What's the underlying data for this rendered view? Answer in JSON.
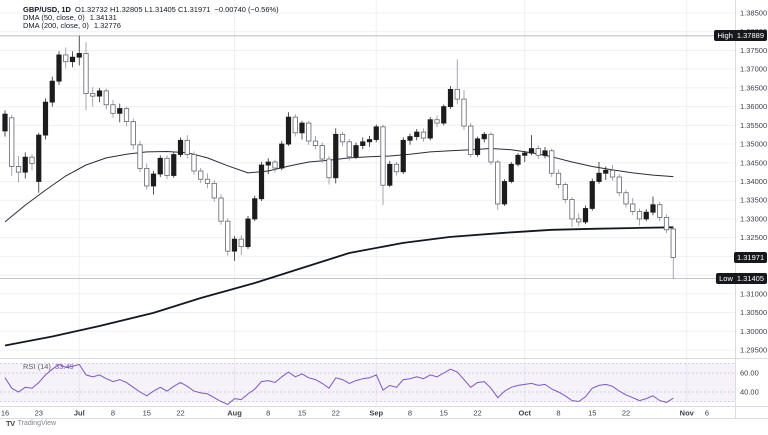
{
  "legend": {
    "symbol": "GBP/USD, 1D",
    "ohlc": "O1.32732  H1.32805  L1.31405  C1.31971",
    "change": "−0.00740 (−0.56%)",
    "ma50_label": "DMA (50, close, 0)",
    "ma50_value": "1.34131",
    "ma200_label": "DMA (200, close, 0)",
    "ma200_value": "1.32776"
  },
  "badges": {
    "high": {
      "label": "High",
      "value": "1.37889",
      "price": 1.37889
    },
    "low": {
      "label": "Low",
      "value": "1.31405",
      "price": 1.31405
    },
    "last": {
      "value": "1.31971",
      "price": 1.31971
    }
  },
  "price_axis": {
    "ticks": [
      {
        "price": 1.385,
        "label": "1.38500"
      },
      {
        "price": 1.38,
        "label": "1.38000"
      },
      {
        "price": 1.375,
        "label": "1.37500"
      },
      {
        "price": 1.37,
        "label": "1.37000"
      },
      {
        "price": 1.365,
        "label": "1.36500"
      },
      {
        "price": 1.36,
        "label": "1.36000"
      },
      {
        "price": 1.355,
        "label": "1.35500"
      },
      {
        "price": 1.35,
        "label": "1.35000"
      },
      {
        "price": 1.345,
        "label": "1.34500"
      },
      {
        "price": 1.34,
        "label": "1.34000"
      },
      {
        "price": 1.335,
        "label": "1.33500"
      },
      {
        "price": 1.33,
        "label": "1.33000"
      },
      {
        "price": 1.325,
        "label": "1.32500"
      },
      {
        "price": 1.32,
        "label": ""
      },
      {
        "price": 1.315,
        "label": ""
      },
      {
        "price": 1.31,
        "label": "1.31000"
      },
      {
        "price": 1.305,
        "label": "1.30500"
      },
      {
        "price": 1.3,
        "label": "1.30000"
      },
      {
        "price": 1.295,
        "label": "1.29500"
      }
    ]
  },
  "time_axis": {
    "ticks": [
      {
        "label": "16",
        "i": 0,
        "month": false
      },
      {
        "label": "23",
        "i": 5,
        "month": false
      },
      {
        "label": "Jul",
        "i": 11,
        "month": true
      },
      {
        "label": "8",
        "i": 16,
        "month": false
      },
      {
        "label": "15",
        "i": 21,
        "month": false
      },
      {
        "label": "22",
        "i": 26,
        "month": false
      },
      {
        "label": "Aug",
        "i": 34,
        "month": true
      },
      {
        "label": "8",
        "i": 39,
        "month": false
      },
      {
        "label": "15",
        "i": 44,
        "month": false
      },
      {
        "label": "22",
        "i": 49,
        "month": false
      },
      {
        "label": "Sep",
        "i": 55,
        "month": true
      },
      {
        "label": "8",
        "i": 60,
        "month": false
      },
      {
        "label": "15",
        "i": 65,
        "month": false
      },
      {
        "label": "22",
        "i": 70,
        "month": false
      },
      {
        "label": "Oct",
        "i": 77,
        "month": true
      },
      {
        "label": "8",
        "i": 82,
        "month": false
      },
      {
        "label": "15",
        "i": 87,
        "month": false
      },
      {
        "label": "22",
        "i": 92,
        "month": false
      },
      {
        "label": "Nov",
        "i": 101,
        "month": true
      },
      {
        "label": "6",
        "i": 104,
        "month": false
      }
    ]
  },
  "footer": {
    "brand": "TradingView",
    "glyph": "TV"
  },
  "colors": {
    "up": "#1c1c1c",
    "down_fill": "#ffffff",
    "down_border": "#62666e",
    "wick_up": "#2c2c2c",
    "wick_down": "#8d929b",
    "ma50": "#2a2e39",
    "ma200": "#131722",
    "grid": "#eef0f3",
    "ray": "#a0a4ac",
    "divider": "#d9dce3",
    "axis_text": "#3c404b",
    "rsi": "#7e57c2",
    "rsi_band": "rgba(126,87,194,0.08)",
    "rsi_level": "#cdc0e6",
    "badge_bg": "#16181d"
  },
  "chart_data": {
    "type": "candlestick+line",
    "title": "GBP/USD, 1D with DMA(50), DMA(200) and RSI(14)",
    "high_ray": 1.37889,
    "low_ray": 1.31405,
    "last_close": 1.31971,
    "prev_close": 1.32711,
    "candles_ohlc": [
      [
        1.3535,
        1.359,
        1.352,
        1.358
      ],
      [
        1.357,
        1.3578,
        1.3415,
        1.344
      ],
      [
        1.344,
        1.3468,
        1.3398,
        1.3425
      ],
      [
        1.3425,
        1.3478,
        1.3408,
        1.3465
      ],
      [
        1.3465,
        1.3473,
        1.343,
        1.3448
      ],
      [
        1.34,
        1.353,
        1.337,
        1.3524
      ],
      [
        1.3524,
        1.3622,
        1.3512,
        1.3612
      ],
      [
        1.3612,
        1.368,
        1.36,
        1.3668
      ],
      [
        1.3668,
        1.3748,
        1.3658,
        1.3738
      ],
      [
        1.3738,
        1.3758,
        1.3702,
        1.372
      ],
      [
        1.372,
        1.3748,
        1.3705,
        1.3732
      ],
      [
        1.3732,
        1.37889,
        1.371,
        1.3742
      ],
      [
        1.3742,
        1.3772,
        1.359,
        1.3635
      ],
      [
        1.3635,
        1.3652,
        1.36,
        1.3628
      ],
      [
        1.3628,
        1.365,
        1.3612,
        1.3642
      ],
      [
        1.3642,
        1.3648,
        1.3592,
        1.3605
      ],
      [
        1.3605,
        1.3618,
        1.357,
        1.3582
      ],
      [
        1.3582,
        1.3608,
        1.3558,
        1.3595
      ],
      [
        1.3595,
        1.36,
        1.3548,
        1.356
      ],
      [
        1.356,
        1.3568,
        1.3486,
        1.3498
      ],
      [
        1.3498,
        1.3508,
        1.3425,
        1.3435
      ],
      [
        1.3435,
        1.3448,
        1.3378,
        1.3388
      ],
      [
        1.3388,
        1.3428,
        1.3365,
        1.342
      ],
      [
        1.342,
        1.347,
        1.3412,
        1.3462
      ],
      [
        1.3462,
        1.347,
        1.3406,
        1.3416
      ],
      [
        1.3416,
        1.3478,
        1.341,
        1.3472
      ],
      [
        1.3472,
        1.3518,
        1.3465,
        1.351
      ],
      [
        1.351,
        1.3524,
        1.3462,
        1.3472
      ],
      [
        1.3472,
        1.348,
        1.3418,
        1.3428
      ],
      [
        1.3428,
        1.3436,
        1.3396,
        1.3406
      ],
      [
        1.3406,
        1.3422,
        1.3382,
        1.3395
      ],
      [
        1.3395,
        1.3404,
        1.3346,
        1.3356
      ],
      [
        1.3356,
        1.3366,
        1.3284,
        1.3294
      ],
      [
        1.3294,
        1.3302,
        1.3202,
        1.3214
      ],
      [
        1.3214,
        1.3254,
        1.3188,
        1.3246
      ],
      [
        1.3246,
        1.3256,
        1.3204,
        1.3226
      ],
      [
        1.3226,
        1.3308,
        1.322,
        1.33
      ],
      [
        1.33,
        1.3362,
        1.3294,
        1.3354
      ],
      [
        1.3354,
        1.3452,
        1.3348,
        1.3444
      ],
      [
        1.3444,
        1.3462,
        1.342,
        1.3452
      ],
      [
        1.3452,
        1.3458,
        1.3424,
        1.3436
      ],
      [
        1.3436,
        1.3508,
        1.343,
        1.35
      ],
      [
        1.35,
        1.3585,
        1.3495,
        1.3572
      ],
      [
        1.3572,
        1.358,
        1.352,
        1.353
      ],
      [
        1.353,
        1.3562,
        1.3512,
        1.3556
      ],
      [
        1.3556,
        1.3562,
        1.3498,
        1.3508
      ],
      [
        1.3508,
        1.3522,
        1.3486,
        1.3496
      ],
      [
        1.3496,
        1.3504,
        1.345,
        1.346
      ],
      [
        1.346,
        1.3468,
        1.3392,
        1.341
      ],
      [
        1.341,
        1.3542,
        1.3395,
        1.3526
      ],
      [
        1.3526,
        1.3534,
        1.3494,
        1.3506
      ],
      [
        1.3506,
        1.3514,
        1.3456,
        1.3466
      ],
      [
        1.3466,
        1.3504,
        1.346,
        1.3496
      ],
      [
        1.3496,
        1.3518,
        1.3486,
        1.3506
      ],
      [
        1.3506,
        1.3522,
        1.3492,
        1.3512
      ],
      [
        1.3512,
        1.3552,
        1.3505,
        1.3546
      ],
      [
        1.3546,
        1.3552,
        1.3337,
        1.339
      ],
      [
        1.339,
        1.3455,
        1.3385,
        1.3446
      ],
      [
        1.3446,
        1.3452,
        1.3416,
        1.3426
      ],
      [
        1.3426,
        1.3518,
        1.342,
        1.351
      ],
      [
        1.351,
        1.3528,
        1.3498,
        1.352
      ],
      [
        1.352,
        1.354,
        1.351,
        1.3532
      ],
      [
        1.3532,
        1.3542,
        1.3506,
        1.3516
      ],
      [
        1.3516,
        1.3572,
        1.351,
        1.3565
      ],
      [
        1.3565,
        1.3576,
        1.3545,
        1.3556
      ],
      [
        1.3556,
        1.3606,
        1.355,
        1.36
      ],
      [
        1.36,
        1.3655,
        1.3594,
        1.3646
      ],
      [
        1.3646,
        1.3726,
        1.3606,
        1.362
      ],
      [
        1.362,
        1.3644,
        1.3538,
        1.3548
      ],
      [
        1.3548,
        1.3556,
        1.3464,
        1.3472
      ],
      [
        1.3472,
        1.352,
        1.3466,
        1.3514
      ],
      [
        1.3514,
        1.3532,
        1.3504,
        1.3526
      ],
      [
        1.3526,
        1.3532,
        1.3444,
        1.3452
      ],
      [
        1.3452,
        1.3458,
        1.3324,
        1.334
      ],
      [
        1.334,
        1.3406,
        1.3335,
        1.34
      ],
      [
        1.34,
        1.3452,
        1.3395,
        1.3446
      ],
      [
        1.3446,
        1.3476,
        1.344,
        1.347
      ],
      [
        1.347,
        1.3482,
        1.3452,
        1.3476
      ],
      [
        1.3476,
        1.3524,
        1.347,
        1.3488
      ],
      [
        1.3488,
        1.3496,
        1.346,
        1.347
      ],
      [
        1.347,
        1.3492,
        1.3462,
        1.3482
      ],
      [
        1.3482,
        1.3488,
        1.3412,
        1.3422
      ],
      [
        1.3422,
        1.3432,
        1.3382,
        1.3392
      ],
      [
        1.3392,
        1.3398,
        1.3342,
        1.3352
      ],
      [
        1.3352,
        1.3358,
        1.3278,
        1.33
      ],
      [
        1.33,
        1.3315,
        1.328,
        1.3292
      ],
      [
        1.3292,
        1.3336,
        1.3286,
        1.3328
      ],
      [
        1.3328,
        1.3408,
        1.3322,
        1.34
      ],
      [
        1.34,
        1.3452,
        1.3394,
        1.3422
      ],
      [
        1.3422,
        1.344,
        1.3404,
        1.343
      ],
      [
        1.343,
        1.3444,
        1.3402,
        1.3412
      ],
      [
        1.3412,
        1.342,
        1.336,
        1.337
      ],
      [
        1.337,
        1.3378,
        1.333,
        1.334
      ],
      [
        1.334,
        1.3356,
        1.331,
        1.332
      ],
      [
        1.332,
        1.3328,
        1.3282,
        1.33
      ],
      [
        1.33,
        1.3326,
        1.3294,
        1.3318
      ],
      [
        1.3318,
        1.336,
        1.331,
        1.3338
      ],
      [
        1.3338,
        1.3346,
        1.3294,
        1.3304
      ],
      [
        1.3304,
        1.3312,
        1.3262,
        1.3271
      ],
      [
        1.32732,
        1.32805,
        1.31405,
        1.31971
      ]
    ],
    "ma50_points": [
      [
        0,
        1.3292
      ],
      [
        3,
        1.3337
      ],
      [
        6,
        1.3377
      ],
      [
        9,
        1.3415
      ],
      [
        12,
        1.3444
      ],
      [
        15,
        1.3463
      ],
      [
        18,
        1.3473
      ],
      [
        21,
        1.3479
      ],
      [
        24,
        1.348
      ],
      [
        27,
        1.3477
      ],
      [
        30,
        1.3463
      ],
      [
        33,
        1.3442
      ],
      [
        36,
        1.3423
      ],
      [
        39,
        1.3428
      ],
      [
        42,
        1.3441
      ],
      [
        45,
        1.3452
      ],
      [
        48,
        1.3457
      ],
      [
        51,
        1.3463
      ],
      [
        54,
        1.3466
      ],
      [
        57,
        1.3468
      ],
      [
        60,
        1.3473
      ],
      [
        63,
        1.3479
      ],
      [
        66,
        1.3482
      ],
      [
        69,
        1.3485
      ],
      [
        72,
        1.3488
      ],
      [
        75,
        1.3485
      ],
      [
        78,
        1.3477
      ],
      [
        81,
        1.3466
      ],
      [
        84,
        1.3452
      ],
      [
        87,
        1.344
      ],
      [
        90,
        1.3431
      ],
      [
        93,
        1.3423
      ],
      [
        96,
        1.3417
      ],
      [
        99,
        1.34131
      ]
    ],
    "ma200_points": [
      [
        0,
        1.2962
      ],
      [
        7,
        1.2986
      ],
      [
        14,
        1.3014
      ],
      [
        22,
        1.3049
      ],
      [
        29,
        1.3089
      ],
      [
        37,
        1.3129
      ],
      [
        44,
        1.3169
      ],
      [
        51,
        1.3209
      ],
      [
        59,
        1.3236
      ],
      [
        66,
        1.3252
      ],
      [
        74,
        1.3263
      ],
      [
        81,
        1.3271
      ],
      [
        88,
        1.3274
      ],
      [
        94,
        1.3276
      ],
      [
        99,
        1.32776
      ]
    ],
    "rsi": {
      "label": "RSI (14)",
      "value": "33.49",
      "levels": [
        {
          "v": 70,
          "label": ""
        },
        {
          "v": 60,
          "label": "60.00"
        },
        {
          "v": 40,
          "label": "40.00"
        },
        {
          "v": 30,
          "label": ""
        }
      ],
      "series": [
        55,
        44,
        40,
        45,
        44,
        50,
        58,
        64,
        69,
        66,
        67,
        69,
        58,
        56,
        58,
        54,
        51,
        53,
        50,
        45,
        40,
        36,
        41,
        45,
        41,
        46,
        50,
        46,
        41,
        39,
        38,
        34,
        30,
        27,
        33,
        32,
        38,
        43,
        51,
        52,
        50,
        56,
        61,
        56,
        59,
        55,
        53,
        49,
        44,
        55,
        53,
        49,
        52,
        54,
        55,
        58,
        42,
        47,
        45,
        53,
        54,
        56,
        54,
        58,
        56,
        60,
        64,
        61,
        53,
        45,
        50,
        51,
        44,
        34,
        41,
        45,
        47,
        48,
        49,
        47,
        48,
        43,
        40,
        36,
        31,
        30,
        35,
        44,
        47,
        48,
        46,
        41,
        37,
        34,
        31,
        33,
        36,
        31,
        29,
        33.49
      ]
    }
  }
}
